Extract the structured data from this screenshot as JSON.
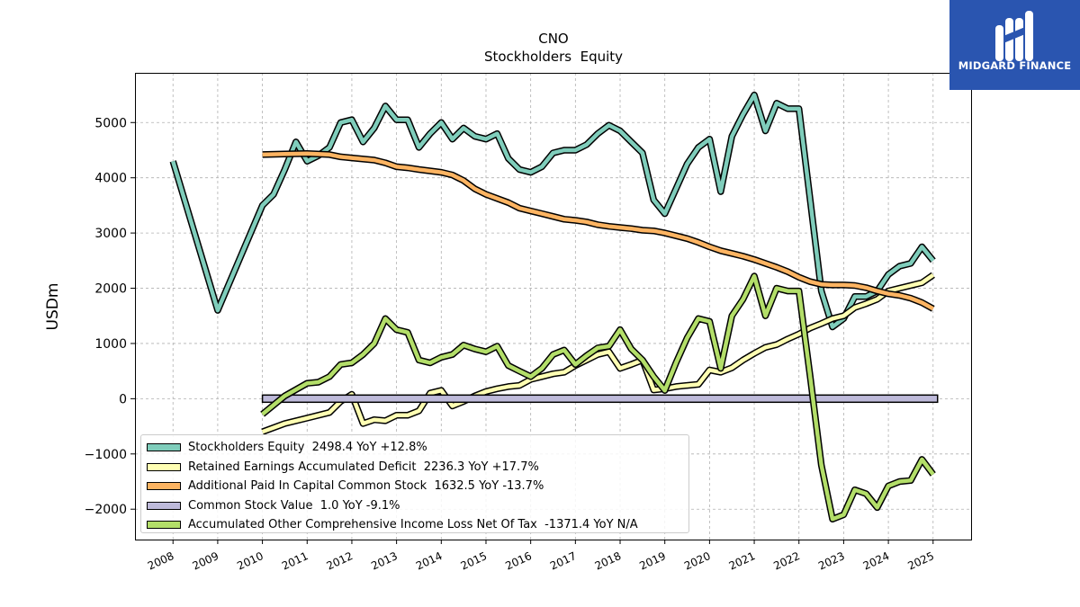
{
  "brand": {
    "name": "MIDGARD FINANCE",
    "bg_color": "#2a55b0"
  },
  "chart_data": {
    "type": "line",
    "title": "CNO",
    "subtitle": "Stockholders  Equity",
    "ylabel": "USDm",
    "xlabel": "",
    "ylim": [
      -2550,
      5900
    ],
    "xlim": [
      2007.15,
      2025.85
    ],
    "yticks": [
      -2000,
      -1000,
      0,
      1000,
      2000,
      3000,
      4000,
      5000
    ],
    "ytick_labels": [
      "−2000",
      "−1000",
      "0",
      "1000",
      "2000",
      "3000",
      "4000",
      "5000"
    ],
    "xticks": [
      2008,
      2009,
      2010,
      2011,
      2012,
      2013,
      2014,
      2015,
      2016,
      2017,
      2018,
      2019,
      2020,
      2021,
      2022,
      2023,
      2024,
      2025
    ],
    "xtick_labels": [
      "2008",
      "2009",
      "2010",
      "2011",
      "2012",
      "2013",
      "2014",
      "2015",
      "2016",
      "2017",
      "2018",
      "2019",
      "2020",
      "2021",
      "2022",
      "2023",
      "2024",
      "2025"
    ],
    "grid": true,
    "legend_position": "lower-left",
    "series": [
      {
        "name": "Stockholders Equity  2498.4 YoY +12.8%",
        "color": "#7fcdbb",
        "points": [
          [
            2008.0,
            4300
          ],
          [
            2009.0,
            1600
          ],
          [
            2009.5,
            2550
          ],
          [
            2010.0,
            3500
          ],
          [
            2010.25,
            3700
          ],
          [
            2010.5,
            4150
          ],
          [
            2010.75,
            4650
          ],
          [
            2011.0,
            4300
          ],
          [
            2011.25,
            4400
          ],
          [
            2011.5,
            4550
          ],
          [
            2011.75,
            5000
          ],
          [
            2012.0,
            5050
          ],
          [
            2012.25,
            4650
          ],
          [
            2012.5,
            4900
          ],
          [
            2012.75,
            5300
          ],
          [
            2013.0,
            5050
          ],
          [
            2013.25,
            5050
          ],
          [
            2013.5,
            4550
          ],
          [
            2013.75,
            4800
          ],
          [
            2014.0,
            5000
          ],
          [
            2014.25,
            4700
          ],
          [
            2014.5,
            4900
          ],
          [
            2014.75,
            4750
          ],
          [
            2015.0,
            4700
          ],
          [
            2015.25,
            4800
          ],
          [
            2015.5,
            4350
          ],
          [
            2015.75,
            4150
          ],
          [
            2016.0,
            4100
          ],
          [
            2016.25,
            4200
          ],
          [
            2016.5,
            4450
          ],
          [
            2016.75,
            4500
          ],
          [
            2017.0,
            4500
          ],
          [
            2017.25,
            4600
          ],
          [
            2017.5,
            4800
          ],
          [
            2017.75,
            4950
          ],
          [
            2018.0,
            4850
          ],
          [
            2018.25,
            4650
          ],
          [
            2018.5,
            4450
          ],
          [
            2018.75,
            3600
          ],
          [
            2019.0,
            3350
          ],
          [
            2019.25,
            3800
          ],
          [
            2019.5,
            4250
          ],
          [
            2019.75,
            4550
          ],
          [
            2020.0,
            4700
          ],
          [
            2020.25,
            3750
          ],
          [
            2020.5,
            4750
          ],
          [
            2020.75,
            5150
          ],
          [
            2021.0,
            5500
          ],
          [
            2021.25,
            4850
          ],
          [
            2021.5,
            5350
          ],
          [
            2021.75,
            5250
          ],
          [
            2022.0,
            5250
          ],
          [
            2022.25,
            3600
          ],
          [
            2022.5,
            1950
          ],
          [
            2022.75,
            1300
          ],
          [
            2023.0,
            1450
          ],
          [
            2023.25,
            1850
          ],
          [
            2023.5,
            1850
          ],
          [
            2023.75,
            1950
          ],
          [
            2024.0,
            2250
          ],
          [
            2024.25,
            2400
          ],
          [
            2024.5,
            2450
          ],
          [
            2024.75,
            2750
          ],
          [
            2025.0,
            2500
          ]
        ]
      },
      {
        "name": "Retained Earnings Accumulated Deficit  2236.3 YoY +17.7%",
        "color": "#ffffb3",
        "points": [
          [
            2010.0,
            -600
          ],
          [
            2010.5,
            -450
          ],
          [
            2011.0,
            -350
          ],
          [
            2011.5,
            -250
          ],
          [
            2011.75,
            -50
          ],
          [
            2012.0,
            80
          ],
          [
            2012.25,
            -450
          ],
          [
            2012.5,
            -380
          ],
          [
            2012.75,
            -400
          ],
          [
            2013.0,
            -300
          ],
          [
            2013.25,
            -300
          ],
          [
            2013.5,
            -220
          ],
          [
            2013.75,
            100
          ],
          [
            2014.0,
            150
          ],
          [
            2014.25,
            -130
          ],
          [
            2014.5,
            -50
          ],
          [
            2014.75,
            50
          ],
          [
            2015.0,
            130
          ],
          [
            2015.25,
            180
          ],
          [
            2015.5,
            220
          ],
          [
            2015.75,
            240
          ],
          [
            2016.0,
            350
          ],
          [
            2016.25,
            400
          ],
          [
            2016.5,
            450
          ],
          [
            2016.75,
            480
          ],
          [
            2017.0,
            600
          ],
          [
            2017.25,
            700
          ],
          [
            2017.5,
            800
          ],
          [
            2017.75,
            850
          ],
          [
            2018.0,
            550
          ],
          [
            2018.25,
            620
          ],
          [
            2018.5,
            700
          ],
          [
            2018.75,
            160
          ],
          [
            2019.0,
            180
          ],
          [
            2019.25,
            220
          ],
          [
            2019.5,
            240
          ],
          [
            2019.75,
            260
          ],
          [
            2020.0,
            520
          ],
          [
            2020.25,
            480
          ],
          [
            2020.5,
            560
          ],
          [
            2020.75,
            700
          ],
          [
            2021.0,
            820
          ],
          [
            2021.25,
            930
          ],
          [
            2021.5,
            980
          ],
          [
            2021.75,
            1080
          ],
          [
            2022.0,
            1170
          ],
          [
            2022.25,
            1280
          ],
          [
            2022.5,
            1360
          ],
          [
            2022.75,
            1450
          ],
          [
            2023.0,
            1500
          ],
          [
            2023.25,
            1650
          ],
          [
            2023.5,
            1720
          ],
          [
            2023.75,
            1800
          ],
          [
            2024.0,
            1950
          ],
          [
            2024.25,
            2000
          ],
          [
            2024.5,
            2050
          ],
          [
            2024.75,
            2100
          ],
          [
            2025.0,
            2240
          ]
        ]
      },
      {
        "name": "Additional Paid In Capital Common Stock  1632.5 YoY -13.7%",
        "color": "#fdb462",
        "points": [
          [
            2010.0,
            4420
          ],
          [
            2010.5,
            4430
          ],
          [
            2011.0,
            4440
          ],
          [
            2011.5,
            4420
          ],
          [
            2011.75,
            4380
          ],
          [
            2012.0,
            4360
          ],
          [
            2012.5,
            4320
          ],
          [
            2012.75,
            4270
          ],
          [
            2013.0,
            4200
          ],
          [
            2013.25,
            4180
          ],
          [
            2013.5,
            4150
          ],
          [
            2014.0,
            4100
          ],
          [
            2014.25,
            4050
          ],
          [
            2014.5,
            3950
          ],
          [
            2014.75,
            3800
          ],
          [
            2015.0,
            3700
          ],
          [
            2015.5,
            3550
          ],
          [
            2015.75,
            3450
          ],
          [
            2016.0,
            3400
          ],
          [
            2016.25,
            3350
          ],
          [
            2016.5,
            3300
          ],
          [
            2016.75,
            3250
          ],
          [
            2017.0,
            3230
          ],
          [
            2017.25,
            3200
          ],
          [
            2017.5,
            3150
          ],
          [
            2017.75,
            3120
          ],
          [
            2018.0,
            3100
          ],
          [
            2018.25,
            3080
          ],
          [
            2018.5,
            3050
          ],
          [
            2018.75,
            3040
          ],
          [
            2019.0,
            3000
          ],
          [
            2019.25,
            2950
          ],
          [
            2019.5,
            2900
          ],
          [
            2019.75,
            2830
          ],
          [
            2020.0,
            2750
          ],
          [
            2020.25,
            2680
          ],
          [
            2020.5,
            2630
          ],
          [
            2020.75,
            2580
          ],
          [
            2021.0,
            2520
          ],
          [
            2021.25,
            2450
          ],
          [
            2021.5,
            2380
          ],
          [
            2021.75,
            2300
          ],
          [
            2022.0,
            2200
          ],
          [
            2022.25,
            2120
          ],
          [
            2022.5,
            2070
          ],
          [
            2022.75,
            2060
          ],
          [
            2023.0,
            2060
          ],
          [
            2023.25,
            2050
          ],
          [
            2023.5,
            2010
          ],
          [
            2023.75,
            1950
          ],
          [
            2024.0,
            1900
          ],
          [
            2024.25,
            1870
          ],
          [
            2024.5,
            1820
          ],
          [
            2024.75,
            1740
          ],
          [
            2025.0,
            1630
          ]
        ]
      },
      {
        "name": "Common Stock Value  1.0 YoY -9.1%",
        "color": "#bebada",
        "bar": true,
        "x_range": [
          2010.0,
          2025.1
        ],
        "value": 1.0
      },
      {
        "name": "Accumulated Other Comprehensive Income Loss Net Of Tax  -1371.4 YoY N/A",
        "color": "#b3de69",
        "points": [
          [
            2010.0,
            -280
          ],
          [
            2010.5,
            50
          ],
          [
            2011.0,
            280
          ],
          [
            2011.25,
            300
          ],
          [
            2011.5,
            400
          ],
          [
            2011.75,
            620
          ],
          [
            2012.0,
            650
          ],
          [
            2012.25,
            800
          ],
          [
            2012.5,
            1000
          ],
          [
            2012.75,
            1450
          ],
          [
            2013.0,
            1250
          ],
          [
            2013.25,
            1200
          ],
          [
            2013.5,
            700
          ],
          [
            2013.75,
            650
          ],
          [
            2014.0,
            750
          ],
          [
            2014.25,
            800
          ],
          [
            2014.5,
            970
          ],
          [
            2014.75,
            900
          ],
          [
            2015.0,
            850
          ],
          [
            2015.25,
            950
          ],
          [
            2015.5,
            600
          ],
          [
            2015.75,
            500
          ],
          [
            2016.0,
            400
          ],
          [
            2016.25,
            550
          ],
          [
            2016.5,
            800
          ],
          [
            2016.75,
            880
          ],
          [
            2017.0,
            620
          ],
          [
            2017.25,
            780
          ],
          [
            2017.5,
            920
          ],
          [
            2017.75,
            950
          ],
          [
            2018.0,
            1250
          ],
          [
            2018.25,
            900
          ],
          [
            2018.5,
            700
          ],
          [
            2018.75,
            400
          ],
          [
            2019.0,
            150
          ],
          [
            2019.25,
            650
          ],
          [
            2019.5,
            1100
          ],
          [
            2019.75,
            1450
          ],
          [
            2020.0,
            1400
          ],
          [
            2020.25,
            550
          ],
          [
            2020.5,
            1500
          ],
          [
            2020.75,
            1800
          ],
          [
            2021.0,
            2220
          ],
          [
            2021.25,
            1500
          ],
          [
            2021.5,
            2000
          ],
          [
            2021.75,
            1950
          ],
          [
            2022.0,
            1950
          ],
          [
            2022.25,
            400
          ],
          [
            2022.5,
            -1200
          ],
          [
            2022.75,
            -2180
          ],
          [
            2023.0,
            -2100
          ],
          [
            2023.25,
            -1650
          ],
          [
            2023.5,
            -1720
          ],
          [
            2023.75,
            -1970
          ],
          [
            2024.0,
            -1580
          ],
          [
            2024.25,
            -1500
          ],
          [
            2024.5,
            -1480
          ],
          [
            2024.75,
            -1100
          ],
          [
            2025.0,
            -1370
          ]
        ]
      }
    ]
  }
}
